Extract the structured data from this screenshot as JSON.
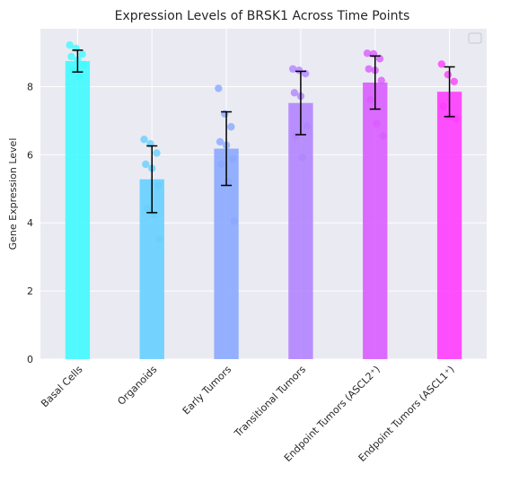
{
  "chart_data": {
    "type": "bar",
    "title": "Expression Levels of BRSK1 Across Time Points",
    "xlabel": "",
    "ylabel": "Gene Expression Level",
    "ylim": [
      0,
      9.7
    ],
    "yticks": [
      0,
      2,
      4,
      6,
      8
    ],
    "grid": true,
    "legend_position": "top-right",
    "categories": [
      "Basal Cells",
      "Organoids",
      "Early Tumors",
      "Transitional Tumors",
      "Endpoint Tumors (ASCL2⁺)",
      "Endpoint Tumors (ASCL1⁺)"
    ],
    "values": [
      8.75,
      5.28,
      6.18,
      7.52,
      8.12,
      7.85
    ],
    "errors": [
      0.32,
      0.98,
      1.08,
      0.93,
      0.78,
      0.73
    ],
    "colors": [
      "#40fbff",
      "#66d0ff",
      "#8aa9ff",
      "#b284ff",
      "#d95cff",
      "#ff3dff"
    ],
    "points": [
      [
        9.22,
        9.12,
        8.95,
        8.88,
        8.78,
        8.65,
        8.48,
        8.28
      ],
      [
        6.45,
        6.32,
        6.05,
        5.72,
        5.6,
        5.1,
        4.42,
        4.25,
        3.52
      ],
      [
        7.95,
        7.2,
        6.82,
        6.38,
        6.28,
        5.88,
        5.72,
        5.22,
        4.05
      ],
      [
        8.52,
        8.48,
        8.38,
        7.82,
        7.72,
        6.85,
        6.55,
        5.92
      ],
      [
        8.98,
        8.96,
        8.82,
        8.52,
        8.48,
        8.18,
        7.62,
        6.92,
        6.55
      ],
      [
        8.66,
        8.35,
        8.15,
        7.42,
        7.12,
        7.06
      ]
    ]
  }
}
